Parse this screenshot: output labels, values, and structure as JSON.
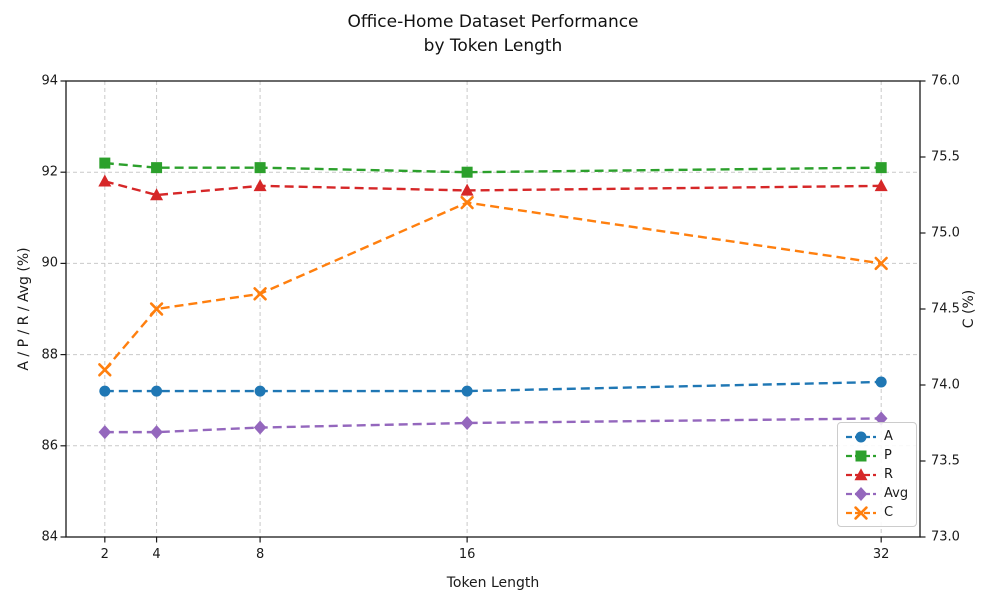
{
  "chart_data": {
    "type": "line",
    "title": "Office-Home Dataset Performance\nby Token Length",
    "xlabel": "Token Length",
    "ylabel": "A / P / R / Avg (%)",
    "y2label": "C (%)",
    "x": [
      2,
      4,
      8,
      16,
      32
    ],
    "xtick_labels": [
      "2",
      "4",
      "8",
      "16",
      "32"
    ],
    "series": [
      {
        "name": "A",
        "axis": "left",
        "color": "#1f77b4",
        "marker": "circle",
        "line_style": "dashed",
        "values": [
          87.2,
          87.2,
          87.2,
          87.2,
          87.4
        ]
      },
      {
        "name": "P",
        "axis": "left",
        "color": "#2ca02c",
        "marker": "square",
        "line_style": "dashed",
        "values": [
          92.2,
          92.1,
          92.1,
          92.0,
          92.1
        ]
      },
      {
        "name": "R",
        "axis": "left",
        "color": "#d62728",
        "marker": "triangle",
        "line_style": "dashed",
        "values": [
          91.8,
          91.5,
          91.7,
          91.6,
          91.7
        ]
      },
      {
        "name": "Avg",
        "axis": "left",
        "color": "#9467bd",
        "marker": "diamond",
        "line_style": "dashed",
        "values": [
          86.3,
          86.3,
          86.4,
          86.5,
          86.6
        ]
      },
      {
        "name": "C",
        "axis": "right",
        "color": "#ff7f0e",
        "marker": "x",
        "line_style": "dashed",
        "values": [
          74.1,
          74.5,
          74.6,
          75.2,
          74.8
        ]
      }
    ],
    "xlim": [
      0.5,
      33.5
    ],
    "ylim": [
      84,
      94
    ],
    "y2lim": [
      73,
      76
    ],
    "xticks": [
      2,
      4,
      8,
      16,
      32
    ],
    "yticks": [
      84,
      86,
      88,
      90,
      92,
      94
    ],
    "y2ticks": [
      73.0,
      73.5,
      74.0,
      74.5,
      75.0,
      75.5,
      76.0
    ],
    "grid": true,
    "legend_position": "lower right"
  }
}
